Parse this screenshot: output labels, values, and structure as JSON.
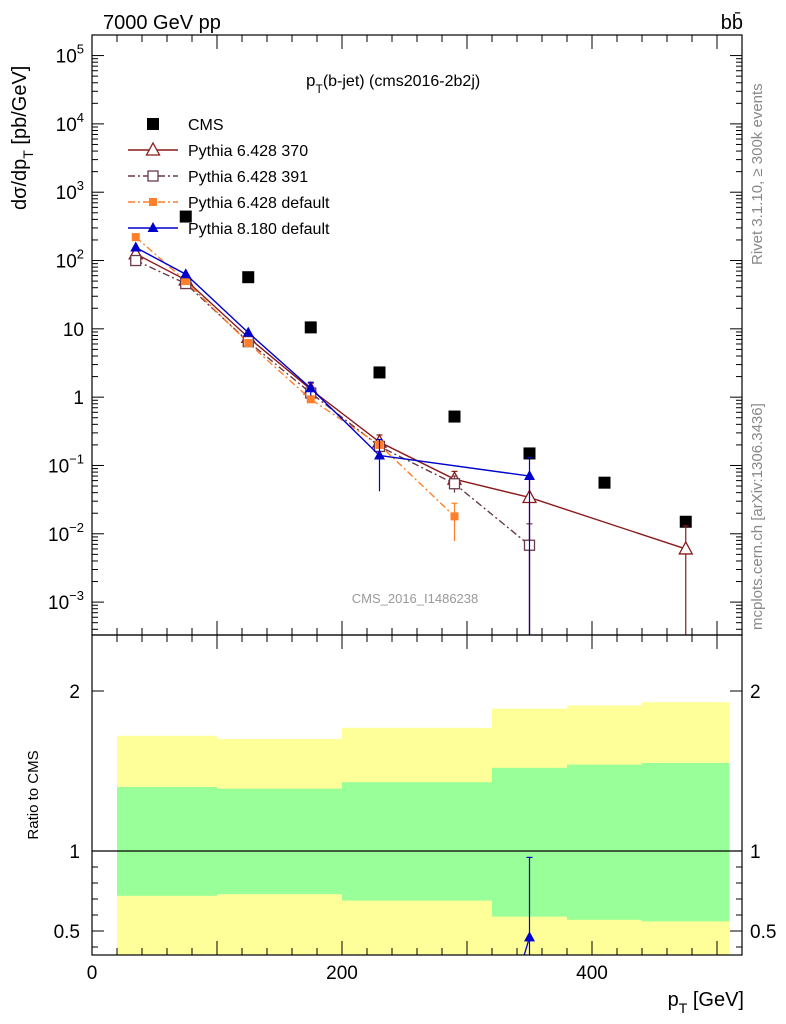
{
  "header": {
    "energy_label": "7000 GeV pp",
    "process_label": "bb̄"
  },
  "side_labels": {
    "rivet": "Rivet 3.1.10, ≥ 300k events",
    "mcplots": "mcplots.cern.ch [arXiv:1306.3436]"
  },
  "chart_data": [
    {
      "type": "scatter",
      "title": "p_T(b-jet) (cms2016-2b2j)",
      "title_main": "p",
      "title_sub": "T",
      "title_rest": "(b-jet) (cms2016-2b2j)",
      "watermark": "CMS_2016_I1486238",
      "xlabel": "p_T [GeV]",
      "xlabel_main": "p",
      "xlabel_sub": "T",
      "xlabel_rest": " [GeV]",
      "ylabel": "dσ/dp_T [pb/GeV]",
      "ylabel_a": "dσ/dp",
      "ylabel_sub": "T",
      "ylabel_b": " [pb/GeV]",
      "xlim": [
        0,
        520
      ],
      "ylim": [
        0.00033,
        200000
      ],
      "yscale": "log",
      "yticks": [
        {
          "value": 0.001,
          "base": "10",
          "exp": "−3"
        },
        {
          "value": 0.01,
          "base": "10",
          "exp": "−2"
        },
        {
          "value": 0.1,
          "base": "10",
          "exp": "−1"
        },
        {
          "value": 1,
          "base": "1",
          "exp": ""
        },
        {
          "value": 10,
          "base": "10",
          "exp": ""
        },
        {
          "value": 100,
          "base": "10",
          "exp": "2"
        },
        {
          "value": 1000,
          "base": "10",
          "exp": "3"
        },
        {
          "value": 10000,
          "base": "10",
          "exp": "4"
        },
        {
          "value": 100000,
          "base": "10",
          "exp": "5"
        }
      ],
      "legend_position": "top-left",
      "series": [
        {
          "name": "CMS",
          "color": "#000000",
          "marker": "square",
          "style": "none",
          "points": [
            {
              "x": 75,
              "y": 440
            },
            {
              "x": 125,
              "y": 57
            },
            {
              "x": 175,
              "y": 10.5
            },
            {
              "x": 230,
              "y": 2.3
            },
            {
              "x": 290,
              "y": 0.52
            },
            {
              "x": 350,
              "y": 0.15
            },
            {
              "x": 410,
              "y": 0.056
            },
            {
              "x": 475,
              "y": 0.015
            }
          ]
        },
        {
          "name": "Pythia 6.428 370",
          "color": "#8b1a1a",
          "marker": "open-triangle",
          "style": "solid",
          "points": [
            {
              "x": 35,
              "y": 125
            },
            {
              "x": 75,
              "y": 52
            },
            {
              "x": 125,
              "y": 7.5
            },
            {
              "x": 175,
              "y": 1.3,
              "ylo": 1.05,
              "yhi": 1.6
            },
            {
              "x": 230,
              "y": 0.22,
              "ylo": 0.17,
              "yhi": 0.28
            },
            {
              "x": 290,
              "y": 0.063,
              "ylo": 0.047,
              "yhi": 0.082
            },
            {
              "x": 350,
              "y": 0.034,
              "ylo": 0.0003,
              "yhi": 0.07
            },
            {
              "x": 475,
              "y": 0.006,
              "ylo": 0.0003,
              "yhi": 0.013
            }
          ]
        },
        {
          "name": "Pythia 6.428 391",
          "color": "#6b3a4a",
          "marker": "open-square",
          "style": "dashdot",
          "points": [
            {
              "x": 35,
              "y": 100
            },
            {
              "x": 75,
              "y": 46
            },
            {
              "x": 125,
              "y": 6.5
            },
            {
              "x": 175,
              "y": 1.15
            },
            {
              "x": 230,
              "y": 0.19,
              "ylo": 0.15,
              "yhi": 0.24
            },
            {
              "x": 290,
              "y": 0.054,
              "ylo": 0.04,
              "yhi": 0.07
            },
            {
              "x": 350,
              "y": 0.0068,
              "ylo": 0.0003,
              "yhi": 0.014
            }
          ]
        },
        {
          "name": "Pythia 6.428 default",
          "color": "#ff7f2a",
          "marker": "filled-square",
          "style": "dashdot",
          "points": [
            {
              "x": 35,
              "y": 220
            },
            {
              "x": 75,
              "y": 50
            },
            {
              "x": 125,
              "y": 6.2
            },
            {
              "x": 175,
              "y": 0.93
            },
            {
              "x": 230,
              "y": 0.2
            },
            {
              "x": 290,
              "y": 0.018,
              "ylo": 0.0078,
              "yhi": 0.028
            }
          ]
        },
        {
          "name": "Pythia 8.180 default",
          "color": "#0000cc",
          "marker": "filled-triangle",
          "style": "solid",
          "points": [
            {
              "x": 35,
              "y": 155
            },
            {
              "x": 75,
              "y": 63
            },
            {
              "x": 125,
              "y": 8.8
            },
            {
              "x": 175,
              "y": 1.35,
              "ylo": 1.05,
              "yhi": 1.65
            },
            {
              "x": 230,
              "y": 0.14,
              "ylo": 0.042,
              "yhi": 0.24
            },
            {
              "x": 350,
              "y": 0.07,
              "ylo": 0.0003,
              "yhi": 0.13
            }
          ]
        }
      ]
    },
    {
      "type": "area",
      "ylabel": "Ratio to CMS",
      "xlim": [
        0,
        520
      ],
      "ylim": [
        0.35,
        2.35
      ],
      "xticks": [
        0,
        200,
        400
      ],
      "yticks": [
        0.5,
        1,
        2
      ],
      "ytick_labels": [
        "0.5",
        "1",
        "2"
      ],
      "bands": [
        {
          "xlo": 20,
          "xhi": 100,
          "yellow_lo": 0,
          "yellow_hi": 1.72,
          "green_lo": 0.72,
          "green_hi": 1.4
        },
        {
          "xlo": 100,
          "xhi": 200,
          "yellow_lo": 0,
          "yellow_hi": 1.7,
          "green_lo": 0.73,
          "green_hi": 1.39
        },
        {
          "xlo": 200,
          "xhi": 320,
          "yellow_lo": 0,
          "yellow_hi": 1.77,
          "green_lo": 0.69,
          "green_hi": 1.43
        },
        {
          "xlo": 320,
          "xhi": 380,
          "yellow_lo": 0,
          "yellow_hi": 1.89,
          "green_lo": 0.59,
          "green_hi": 1.52
        },
        {
          "xlo": 380,
          "xhi": 440,
          "yellow_lo": 0,
          "yellow_hi": 1.91,
          "green_lo": 0.57,
          "green_hi": 1.54
        },
        {
          "xlo": 440,
          "xhi": 510,
          "yellow_lo": 0,
          "yellow_hi": 1.93,
          "green_lo": 0.56,
          "green_hi": 1.55
        }
      ],
      "band_colors": {
        "yellow": "#ffff99",
        "green": "#99ff99"
      },
      "series": [
        {
          "name": "Pythia 8.180 default",
          "color": "#0000cc",
          "points": [
            {
              "x": 350,
              "y": 0.46,
              "ylo": 0.0,
              "yhi": 0.96
            }
          ],
          "incoming_from": {
            "x": 340,
            "y": 0.2
          }
        }
      ]
    }
  ]
}
